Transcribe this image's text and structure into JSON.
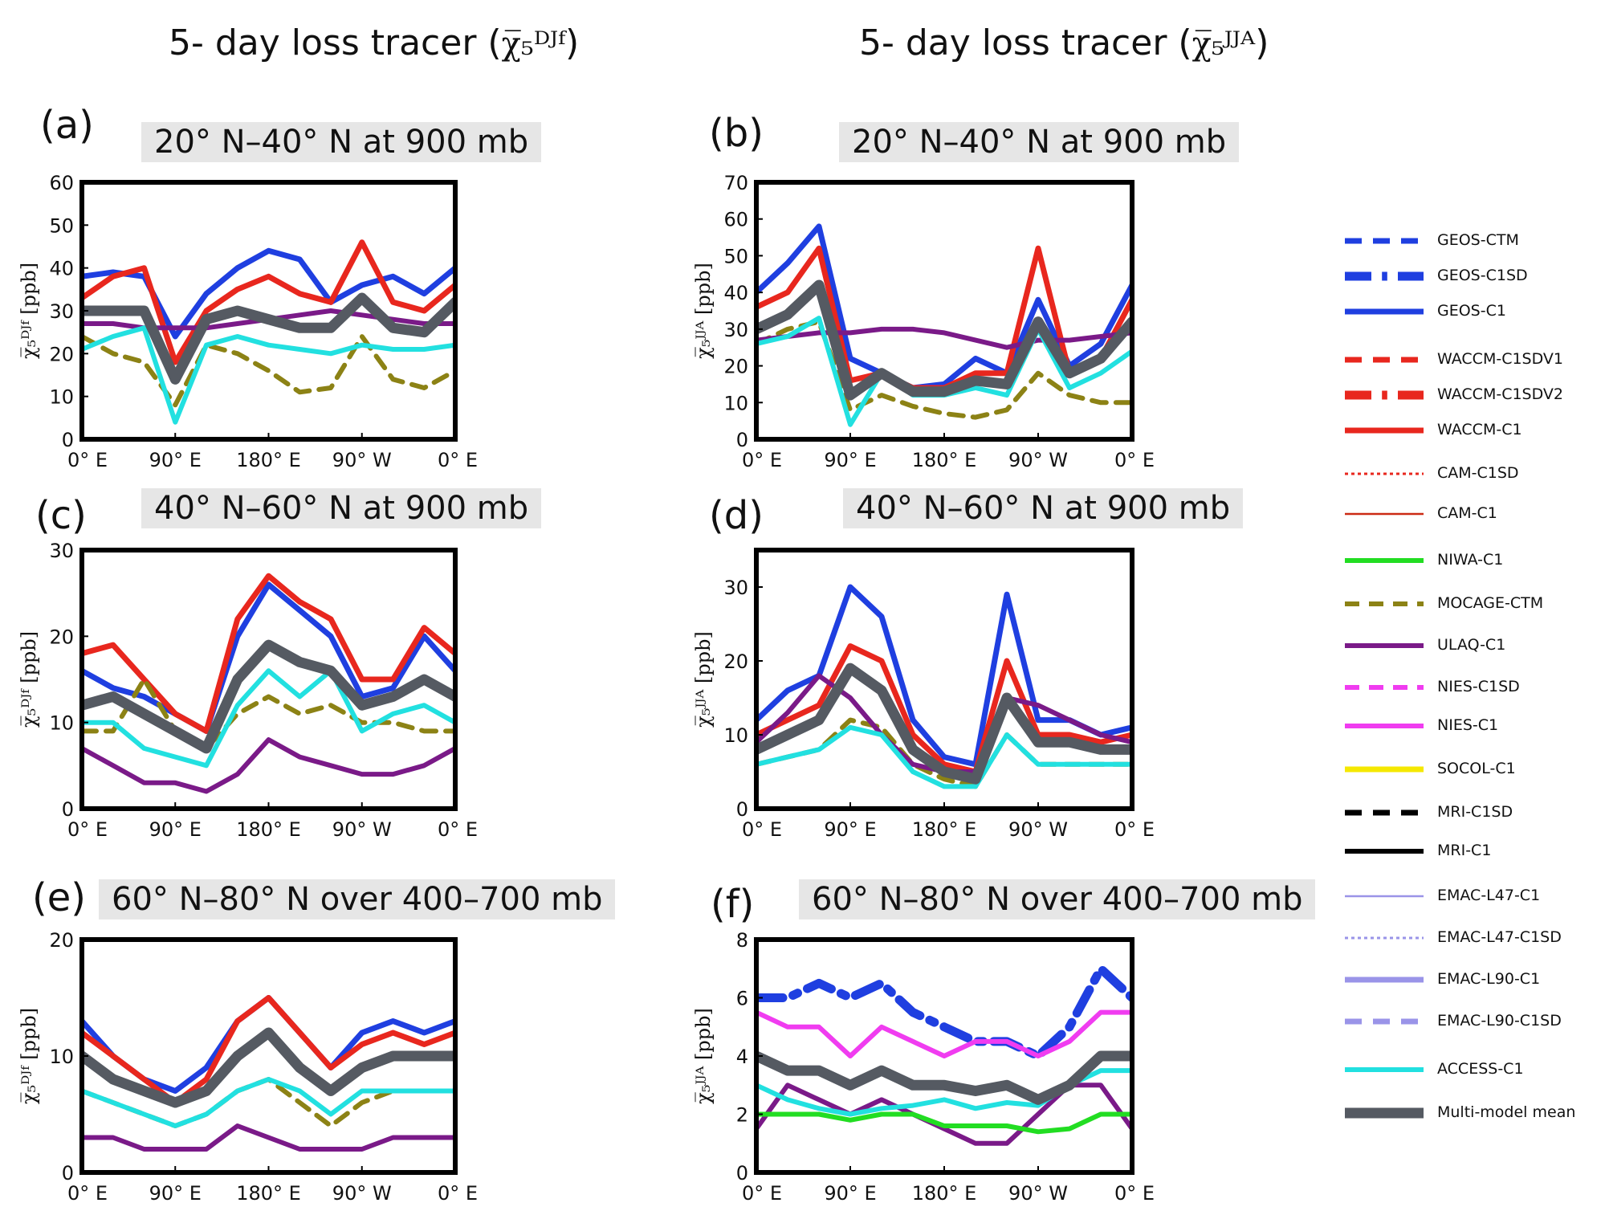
{
  "columns": [
    {
      "title_prefix": "5- day loss tracer (",
      "symbol": "χ̅₅ᴰᴶᶠ",
      "title_suffix": ")"
    },
    {
      "title_prefix": "5- day loss tracer (",
      "symbol": "χ̅₅ᴶᴶᴬ",
      "title_suffix": ")"
    }
  ],
  "panels": [
    {
      "letter": "(a)",
      "title": "20° N–40° N  at 900 mb",
      "ylabel": "χ̅₅ᴰᴶᶠ [ppb]",
      "yticks": [
        "0",
        "10",
        "20",
        "30",
        "40",
        "50",
        "60"
      ],
      "xticks": [
        "0° E",
        "90° E",
        "180° E",
        "90° W",
        "0° E"
      ]
    },
    {
      "letter": "(b)",
      "title": "20° N–40° N  at 900 mb",
      "ylabel": "χ̅₅ᴶᴶᴬ [ppb]",
      "yticks": [
        "0",
        "10",
        "20",
        "30",
        "40",
        "50",
        "60",
        "70"
      ],
      "xticks": [
        "0° E",
        "90° E",
        "180° E",
        "90° W",
        "0° E"
      ]
    },
    {
      "letter": "(c)",
      "title": "40° N–60° N at 900 mb",
      "ylabel": "χ̅₅ᴰᴶᶠ [ppb]",
      "yticks": [
        "0",
        "10",
        "20",
        "30"
      ],
      "xticks": [
        "0° E",
        "90° E",
        "180° E",
        "90° W",
        "0° E"
      ]
    },
    {
      "letter": "(d)",
      "title": "40° N–60° N at 900 mb",
      "ylabel": "χ̅₅ᴶᴶᴬ [ppb]",
      "yticks": [
        "0",
        "10",
        "20",
        "30"
      ],
      "xticks": [
        "0° E",
        "90° E",
        "180° E",
        "90° W",
        "0° E"
      ]
    },
    {
      "letter": "(e)",
      "title": "60° N–80° N over 400–700 mb",
      "ylabel": "χ̅₅ᴰᴶᶠ [ppb]",
      "yticks": [
        "0",
        "10",
        "20"
      ],
      "xticks": [
        "0° E",
        "90° E",
        "180° E",
        "90° W",
        "0° E"
      ]
    },
    {
      "letter": "(f)",
      "title": "60° N–80° N over 400–700 mb",
      "ylabel": "χ̅₅ᴶᴶᴬ [ppb]",
      "yticks": [
        "0",
        "2",
        "4",
        "6",
        "8"
      ],
      "xticks": [
        "0° E",
        "90° E",
        "180° E",
        "90° W",
        "0° E"
      ]
    }
  ],
  "legend": [
    {
      "name": "GEOS-CTM",
      "color": "#1f3fe0",
      "style": "dash",
      "width": 7
    },
    {
      "name": "GEOS-C1SD",
      "color": "#1f3fe0",
      "style": "dashdot",
      "width": 11
    },
    {
      "name": "GEOS-C1",
      "color": "#1f3fe0",
      "style": "solid",
      "width": 7
    },
    {
      "name": "WACCM-C1SDV1",
      "color": "#e8271e",
      "style": "dash",
      "width": 7
    },
    {
      "name": "WACCM-C1SDV2",
      "color": "#e8271e",
      "style": "dashdot",
      "width": 11
    },
    {
      "name": "WACCM-C1",
      "color": "#e8271e",
      "style": "solid",
      "width": 7
    },
    {
      "name": "CAM-C1SD",
      "color": "#e8271e",
      "style": "dot",
      "width": 3
    },
    {
      "name": "CAM-C1",
      "color": "#cc2a14",
      "style": "solid",
      "width": 2.5
    },
    {
      "name": "NIWA-C1",
      "color": "#22dd22",
      "style": "solid",
      "width": 6
    },
    {
      "name": "MOCAGE-CTM",
      "color": "#8c8215",
      "style": "dash",
      "width": 6
    },
    {
      "name": "ULAQ-C1",
      "color": "#7a1a88",
      "style": "solid",
      "width": 6
    },
    {
      "name": "NIES-C1SD",
      "color": "#f03cf0",
      "style": "dash",
      "width": 6
    },
    {
      "name": "NIES-C1",
      "color": "#f03cf0",
      "style": "solid",
      "width": 6
    },
    {
      "name": "SOCOL-C1",
      "color": "#f5e800",
      "style": "solid",
      "width": 7
    },
    {
      "name": "MRI-C1SD",
      "color": "#000000",
      "style": "dash",
      "width": 7
    },
    {
      "name": "MRI-C1",
      "color": "#000000",
      "style": "solid",
      "width": 6
    },
    {
      "name": "EMAC-L47-C1",
      "color": "#9a94e8",
      "style": "solid",
      "width": 2.5
    },
    {
      "name": "EMAC-L47-C1SD",
      "color": "#9a94e8",
      "style": "dot",
      "width": 3
    },
    {
      "name": "EMAC-L90-C1",
      "color": "#9a94e8",
      "style": "solid",
      "width": 7
    },
    {
      "name": "EMAC-L90-C1SD",
      "color": "#9a94e8",
      "style": "dash",
      "width": 7
    },
    {
      "name": "ACCESS-C1",
      "color": "#22e0e0",
      "style": "solid",
      "width": 6
    },
    {
      "name": "Multi-model mean",
      "color": "#555a62",
      "style": "solid",
      "width": 13
    }
  ],
  "chart_data": [
    {
      "type": "line",
      "x": [
        0,
        30,
        60,
        90,
        120,
        150,
        180,
        210,
        240,
        270,
        300,
        330,
        360
      ],
      "ylim": [
        0,
        60
      ],
      "series": [
        {
          "name": "GEOS-C1",
          "values": [
            38,
            39,
            38,
            24,
            34,
            40,
            44,
            42,
            32,
            36,
            38,
            34,
            40
          ]
        },
        {
          "name": "WACCM-C1",
          "values": [
            33,
            38,
            40,
            18,
            30,
            35,
            38,
            34,
            32,
            46,
            32,
            30,
            36
          ]
        },
        {
          "name": "MOCAGE-CTM",
          "values": [
            24,
            20,
            18,
            8,
            22,
            20,
            16,
            11,
            12,
            24,
            14,
            12,
            16
          ]
        },
        {
          "name": "ULAQ-C1",
          "values": [
            27,
            27,
            26,
            26,
            26,
            27,
            28,
            29,
            30,
            29,
            28,
            27,
            27
          ]
        },
        {
          "name": "ACCESS-C1",
          "values": [
            21,
            24,
            26,
            4,
            22,
            24,
            22,
            21,
            20,
            22,
            21,
            21,
            22
          ]
        },
        {
          "name": "Multi-model mean",
          "values": [
            30,
            30,
            30,
            14,
            28,
            30,
            28,
            26,
            26,
            33,
            26,
            25,
            32
          ]
        }
      ]
    },
    {
      "type": "line",
      "x": [
        0,
        30,
        60,
        90,
        120,
        150,
        180,
        210,
        240,
        270,
        300,
        330,
        360
      ],
      "ylim": [
        0,
        70
      ],
      "series": [
        {
          "name": "GEOS-C1",
          "values": [
            40,
            48,
            58,
            22,
            18,
            14,
            15,
            22,
            18,
            38,
            20,
            26,
            42
          ]
        },
        {
          "name": "WACCM-C1",
          "values": [
            36,
            40,
            52,
            16,
            18,
            14,
            14,
            18,
            18,
            52,
            18,
            22,
            38
          ]
        },
        {
          "name": "MOCAGE-CTM",
          "values": [
            26,
            30,
            32,
            8,
            12,
            9,
            7,
            6,
            8,
            18,
            12,
            10,
            10
          ]
        },
        {
          "name": "ULAQ-C1",
          "values": [
            27,
            28,
            29,
            29,
            30,
            30,
            29,
            27,
            25,
            27,
            27,
            28,
            29
          ]
        },
        {
          "name": "ACCESS-C1",
          "values": [
            26,
            28,
            33,
            4,
            18,
            12,
            12,
            14,
            12,
            30,
            14,
            18,
            24
          ]
        },
        {
          "name": "Multi-model mean",
          "values": [
            30,
            34,
            42,
            12,
            18,
            13,
            13,
            16,
            15,
            32,
            18,
            22,
            32
          ]
        }
      ]
    },
    {
      "type": "line",
      "x": [
        0,
        30,
        60,
        90,
        120,
        150,
        180,
        210,
        240,
        270,
        300,
        330,
        360
      ],
      "ylim": [
        0,
        30
      ],
      "series": [
        {
          "name": "GEOS-C1",
          "values": [
            16,
            14,
            13,
            11,
            9,
            20,
            26,
            23,
            20,
            13,
            14,
            20,
            16
          ]
        },
        {
          "name": "WACCM-C1",
          "values": [
            18,
            19,
            15,
            11,
            9,
            22,
            27,
            24,
            22,
            15,
            15,
            21,
            18
          ]
        },
        {
          "name": "MOCAGE-CTM",
          "values": [
            9,
            9,
            15,
            9,
            7,
            11,
            13,
            11,
            12,
            10,
            10,
            9,
            9
          ]
        },
        {
          "name": "ULAQ-C1",
          "values": [
            7,
            5,
            3,
            3,
            2,
            4,
            8,
            6,
            5,
            4,
            4,
            5,
            7
          ]
        },
        {
          "name": "ACCESS-C1",
          "values": [
            10,
            10,
            7,
            6,
            5,
            12,
            16,
            13,
            16,
            9,
            11,
            12,
            10
          ]
        },
        {
          "name": "Multi-model mean",
          "values": [
            12,
            13,
            11,
            9,
            7,
            15,
            19,
            17,
            16,
            12,
            13,
            15,
            13
          ]
        }
      ]
    },
    {
      "type": "line",
      "x": [
        0,
        30,
        60,
        90,
        120,
        150,
        180,
        210,
        240,
        270,
        300,
        330,
        360
      ],
      "ylim": [
        0,
        35
      ],
      "series": [
        {
          "name": "GEOS-C1",
          "values": [
            12,
            16,
            18,
            30,
            26,
            12,
            7,
            6,
            29,
            12,
            12,
            10,
            11
          ]
        },
        {
          "name": "WACCM-C1",
          "values": [
            10,
            12,
            14,
            22,
            20,
            10,
            6,
            5,
            20,
            10,
            10,
            9,
            10
          ]
        },
        {
          "name": "MOCAGE-CTM",
          "values": [
            6,
            7,
            8,
            12,
            11,
            6,
            4,
            3,
            10,
            6,
            6,
            6,
            6
          ]
        },
        {
          "name": "ULAQ-C1",
          "values": [
            9,
            13,
            18,
            15,
            10,
            6,
            5,
            5,
            15,
            14,
            12,
            10,
            9
          ]
        },
        {
          "name": "ACCESS-C1",
          "values": [
            6,
            7,
            8,
            11,
            10,
            5,
            3,
            3,
            10,
            6,
            6,
            6,
            6
          ]
        },
        {
          "name": "Multi-model mean",
          "values": [
            8,
            10,
            12,
            19,
            16,
            8,
            5,
            4,
            15,
            9,
            9,
            8,
            8
          ]
        }
      ]
    },
    {
      "type": "line",
      "x": [
        0,
        30,
        60,
        90,
        120,
        150,
        180,
        210,
        240,
        270,
        300,
        330,
        360
      ],
      "ylim": [
        0,
        20
      ],
      "series": [
        {
          "name": "GEOS-C1",
          "values": [
            13,
            10,
            8,
            7,
            9,
            13,
            15,
            12,
            9,
            12,
            13,
            12,
            13
          ]
        },
        {
          "name": "WACCM-C1",
          "values": [
            12,
            10,
            8,
            6,
            8,
            13,
            15,
            12,
            9,
            11,
            12,
            11,
            12
          ]
        },
        {
          "name": "MOCAGE-CTM",
          "values": [
            7,
            6,
            5,
            4,
            5,
            7,
            8,
            6,
            4,
            6,
            7,
            7,
            7
          ]
        },
        {
          "name": "ULAQ-C1",
          "values": [
            3,
            3,
            2,
            2,
            2,
            4,
            3,
            2,
            2,
            2,
            3,
            3,
            3
          ]
        },
        {
          "name": "ACCESS-C1",
          "values": [
            7,
            6,
            5,
            4,
            5,
            7,
            8,
            7,
            5,
            7,
            7,
            7,
            7
          ]
        },
        {
          "name": "Multi-model mean",
          "values": [
            10,
            8,
            7,
            6,
            7,
            10,
            12,
            9,
            7,
            9,
            10,
            10,
            10
          ]
        }
      ]
    },
    {
      "type": "line",
      "x": [
        0,
        30,
        60,
        90,
        120,
        150,
        180,
        210,
        240,
        270,
        300,
        330,
        360
      ],
      "ylim": [
        0,
        8
      ],
      "series": [
        {
          "name": "GEOS-C1SD",
          "values": [
            6,
            6,
            6.5,
            6,
            6.5,
            5.5,
            5,
            4.5,
            4.5,
            4,
            5,
            7,
            6
          ]
        },
        {
          "name": "NIES-C1",
          "values": [
            5.5,
            5,
            5,
            4,
            5,
            4.5,
            4,
            4.5,
            4.5,
            4,
            4.5,
            5.5,
            5.5
          ]
        },
        {
          "name": "ULAQ-C1",
          "values": [
            1.5,
            3,
            2.5,
            2,
            2.5,
            2,
            1.5,
            1,
            1,
            2,
            3,
            3,
            1.5
          ]
        },
        {
          "name": "NIWA-C1",
          "values": [
            2,
            2,
            2,
            1.8,
            2,
            2,
            1.6,
            1.6,
            1.6,
            1.4,
            1.5,
            2,
            2
          ]
        },
        {
          "name": "ACCESS-C1",
          "values": [
            3,
            2.5,
            2.2,
            2,
            2.2,
            2.3,
            2.5,
            2.2,
            2.4,
            2.3,
            3,
            3.5,
            3.5
          ]
        },
        {
          "name": "Multi-model mean",
          "values": [
            4,
            3.5,
            3.5,
            3,
            3.5,
            3,
            3,
            2.8,
            3,
            2.5,
            3,
            4,
            4
          ]
        }
      ]
    }
  ]
}
